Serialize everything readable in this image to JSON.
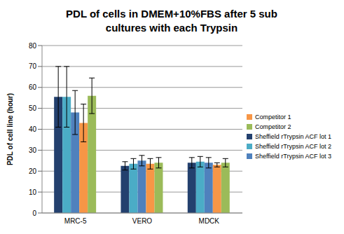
{
  "chart_data": {
    "type": "bar",
    "title": "PDL of cells in DMEM+10%FBS after 5 sub cultures with each Trypsin",
    "y_label": "PDL of cell line (hour)",
    "categories": [
      "MRC-5",
      "VERO",
      "MDCK"
    ],
    "series": [
      {
        "name": "Sheffield rTrypsin ACF lot 1",
        "color": "#23406e",
        "values": [
          55.5,
          22.5,
          24
        ],
        "errors": [
          14.5,
          2,
          2.5
        ]
      },
      {
        "name": "Sheffield rTrypsin ACF lot 2",
        "color": "#4bacc6",
        "values": [
          55.5,
          23.5,
          24.5
        ],
        "errors": [
          14.5,
          2.5,
          2.5
        ]
      },
      {
        "name": "Sheffield rTrypsin ACF lot 3",
        "color": "#4f81bd",
        "values": [
          48,
          25,
          24
        ],
        "errors": [
          10.5,
          2.5,
          2.5
        ]
      },
      {
        "name": "Competitor 1",
        "color": "#f79646",
        "values": [
          43,
          23.5,
          23
        ],
        "errors": [
          9,
          2.5,
          1
        ]
      },
      {
        "name": "Competitor 2",
        "color": "#9bbb59",
        "values": [
          56,
          24,
          24
        ],
        "errors": [
          8.5,
          2.5,
          2
        ]
      }
    ],
    "ylim": [
      0,
      80
    ],
    "yticks": [
      0,
      10,
      20,
      30,
      40,
      50,
      60,
      70,
      80
    ],
    "grid": true,
    "legend": "right"
  }
}
